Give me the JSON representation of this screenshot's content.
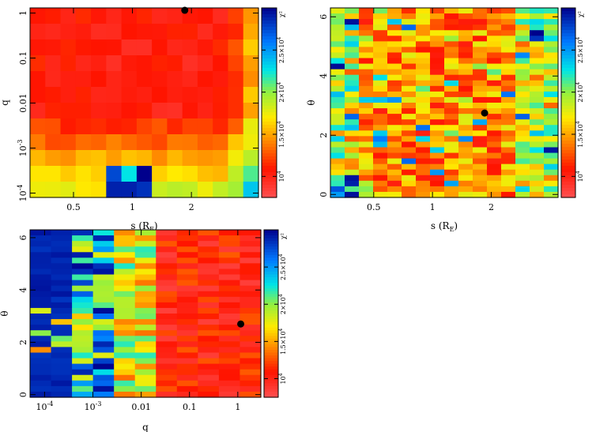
{
  "chart_data": [
    {
      "type": "heatmap",
      "panel": "top-left",
      "xlabel": "s (R_E)",
      "xlabel_main": "s (R",
      "xlabel_sub": "E",
      "xlabel_close": ")",
      "ylabel": "q",
      "xscale": "log",
      "yscale": "log",
      "xlim": [
        0.3,
        4.4
      ],
      "ylim": [
        8e-05,
        1.3
      ],
      "xticks": [
        {
          "v": 0.5,
          "label": "0.5"
        },
        {
          "v": 1,
          "label": "1"
        },
        {
          "v": 2,
          "label": "2"
        }
      ],
      "yticks": [
        {
          "v": 0.0001,
          "base": "10",
          "exp": "-4"
        },
        {
          "v": 0.001,
          "base": "10",
          "exp": "-3"
        },
        {
          "v": 0.01,
          "label": "0.01"
        },
        {
          "v": 0.1,
          "label": "0.1"
        },
        {
          "v": 1,
          "label": "1"
        }
      ],
      "best_fit_point": {
        "x": 1.85,
        "y": 1.15
      },
      "colorbar": {
        "label": "χ²",
        "range": [
          7500,
          30000
        ],
        "ticks": [
          {
            "v": 10000,
            "mant": "",
            "exp": "4"
          },
          {
            "v": 15000,
            "mant": "1.5×",
            "exp": "4"
          },
          {
            "v": 20000,
            "mant": "2×",
            "exp": "4"
          },
          {
            "v": 25000,
            "mant": "2.5×",
            "exp": "4"
          }
        ]
      }
    },
    {
      "type": "heatmap",
      "panel": "top-right",
      "xlabel": "s (R_E)",
      "xlabel_main": "s (R",
      "xlabel_sub": "E",
      "xlabel_close": ")",
      "ylabel": "θ",
      "xscale": "log",
      "yscale": "linear",
      "xlim": [
        0.3,
        4.4
      ],
      "ylim": [
        -0.1,
        6.3
      ],
      "xticks": [
        {
          "v": 0.5,
          "label": "0.5"
        },
        {
          "v": 1,
          "label": "1"
        },
        {
          "v": 2,
          "label": "2"
        }
      ],
      "yticks": [
        {
          "v": 0,
          "label": "0"
        },
        {
          "v": 2,
          "label": "2"
        },
        {
          "v": 4,
          "label": "4"
        },
        {
          "v": 6,
          "label": "6"
        }
      ],
      "best_fit_point": {
        "x": 1.85,
        "y": 2.75
      },
      "colorbar": {
        "label": "χ²",
        "range": [
          7500,
          30000
        ],
        "ticks": [
          {
            "v": 10000,
            "mant": "",
            "exp": "4"
          },
          {
            "v": 15000,
            "mant": "1.5×",
            "exp": "4"
          },
          {
            "v": 20000,
            "mant": "2×",
            "exp": "4"
          },
          {
            "v": 25000,
            "mant": "2.5×",
            "exp": "4"
          }
        ]
      }
    },
    {
      "type": "heatmap",
      "panel": "bottom-left",
      "xlabel": "q",
      "ylabel": "θ",
      "xscale": "log",
      "yscale": "linear",
      "xlim": [
        5e-05,
        3
      ],
      "ylim": [
        -0.1,
        6.3
      ],
      "xticks": [
        {
          "v": 0.0001,
          "base": "10",
          "exp": "-4"
        },
        {
          "v": 0.001,
          "base": "10",
          "exp": "-3"
        },
        {
          "v": 0.01,
          "label": "0.01"
        },
        {
          "v": 0.1,
          "label": "0.1"
        },
        {
          "v": 1,
          "label": "1"
        }
      ],
      "yticks": [
        {
          "v": 0,
          "label": "0"
        },
        {
          "v": 2,
          "label": "2"
        },
        {
          "v": 4,
          "label": "4"
        },
        {
          "v": 6,
          "label": "6"
        }
      ],
      "best_fit_point": {
        "x": 1.15,
        "y": 2.7
      },
      "colorbar": {
        "label": "χ²",
        "range": [
          7500,
          30000
        ],
        "ticks": [
          {
            "v": 10000,
            "mant": "",
            "exp": "4"
          },
          {
            "v": 15000,
            "mant": "1.5×",
            "exp": "4"
          },
          {
            "v": 20000,
            "mant": "2×",
            "exp": "4"
          },
          {
            "v": 25000,
            "mant": "2.5×",
            "exp": "4"
          }
        ]
      }
    }
  ]
}
